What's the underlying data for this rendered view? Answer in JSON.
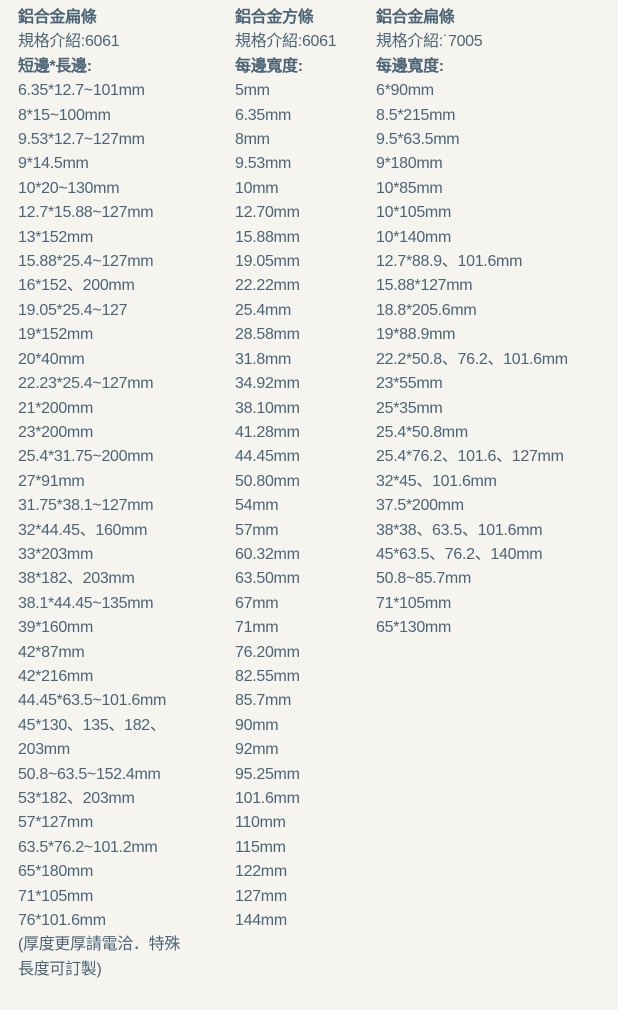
{
  "columns": [
    {
      "title": "鋁合金扁條",
      "spec": "規格介紹:6061",
      "subtitle": "短邊*長邊:",
      "items": [
        "6.35*12.7~101mm",
        "8*15~100mm",
        "9.53*12.7~127mm",
        "9*14.5mm",
        "10*20~130mm",
        "12.7*15.88~127mm",
        "13*152mm",
        "15.88*25.4~127mm",
        "16*152、200mm",
        "19.05*25.4~127",
        "19*152mm",
        "20*40mm",
        "22.23*25.4~127mm",
        "21*200mm",
        "23*200mm",
        "25.4*31.75~200mm",
        "27*91mm",
        "31.75*38.1~127mm",
        "32*44.45、160mm",
        "33*203mm",
        "38*182、203mm",
        "38.1*44.45~135mm",
        "39*160mm",
        "42*87mm",
        "42*216mm",
        "44.45*63.5~101.6mm",
        "45*130、135、182、\n203mm",
        "50.8~63.5~152.4mm",
        "53*182、203mm",
        "57*127mm",
        "63.5*76.2~101.2mm",
        "65*180mm",
        "71*105mm",
        "76*101.6mm",
        "(厚度更厚請電洽．特殊\n長度可訂製)"
      ]
    },
    {
      "title": "鋁合金方條",
      "spec": "規格介紹:6061",
      "subtitle": "每邊寬度:",
      "items": [
        "5mm",
        "6.35mm",
        "8mm",
        "9.53mm",
        "10mm",
        "12.70mm",
        "15.88mm",
        "19.05mm",
        "22.22mm",
        "25.4mm",
        "28.58mm",
        "31.8mm",
        "34.92mm",
        "38.10mm",
        "41.28mm",
        "44.45mm",
        "50.80mm",
        "54mm",
        "57mm",
        "60.32mm",
        "63.50mm",
        "67mm",
        "71mm",
        "76.20mm",
        "82.55mm",
        "85.7mm",
        "90mm",
        "92mm",
        "95.25mm",
        "101.6mm",
        "110mm",
        "115mm",
        "122mm",
        "127mm",
        "144mm"
      ]
    },
    {
      "title": "鋁合金扁條",
      "spec": "規格介紹:˙7005",
      "subtitle": "每邊寬度:",
      "items": [
        "6*90mm",
        "8.5*215mm",
        "9.5*63.5mm",
        "9*180mm",
        "10*85mm",
        "10*105mm",
        "10*140mm",
        "12.7*88.9、101.6mm",
        "15.88*127mm",
        "18.8*205.6mm",
        "19*88.9mm",
        "22.2*50.8、76.2、101.6mm",
        "23*55mm",
        "25*35mm",
        "25.4*50.8mm",
        "25.4*76.2、101.6、127mm",
        "32*45、101.6mm",
        "37.5*200mm",
        "38*38、63.5、101.6mm",
        "45*63.5、76.2、140mm",
        "50.8~85.7mm",
        "71*105mm",
        "65*130mm"
      ]
    }
  ],
  "colors": {
    "text": "#4c6576",
    "background": "#f6f4ef"
  }
}
